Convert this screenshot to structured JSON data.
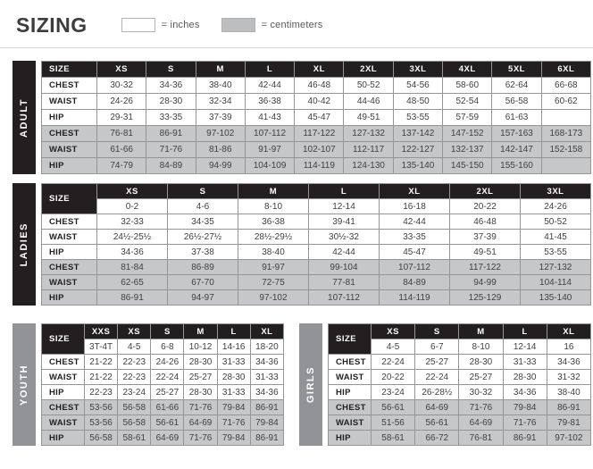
{
  "header": {
    "title": "SIZING",
    "legend_inches": "= inches",
    "legend_centimeters": "= centimeters"
  },
  "colors": {
    "black": "#231f20",
    "gray_bar": "#919396",
    "cm_row_bg": "#c6c7c9",
    "border": "#939598",
    "inches_swatch": "#ffffff",
    "centimeters_swatch": "#bcbec0"
  },
  "tables": [
    {
      "id": "adult",
      "group_label": "ADULT",
      "bar": "black",
      "size_label": "SIZE",
      "sizes": [
        "XS",
        "S",
        "M",
        "L",
        "XL",
        "2XL",
        "3XL",
        "4XL",
        "5XL",
        "6XL"
      ],
      "rows": [
        {
          "label": "CHEST",
          "unit": "in",
          "values": [
            "30-32",
            "34-36",
            "38-40",
            "42-44",
            "46-48",
            "50-52",
            "54-56",
            "58-60",
            "62-64",
            "66-68"
          ]
        },
        {
          "label": "WAIST",
          "unit": "in",
          "values": [
            "24-26",
            "28-30",
            "32-34",
            "36-38",
            "40-42",
            "44-46",
            "48-50",
            "52-54",
            "56-58",
            "60-62"
          ]
        },
        {
          "label": "HIP",
          "unit": "in",
          "values": [
            "29-31",
            "33-35",
            "37-39",
            "41-43",
            "45-47",
            "49-51",
            "53-55",
            "57-59",
            "61-63",
            ""
          ]
        },
        {
          "label": "CHEST",
          "unit": "cm",
          "values": [
            "76-81",
            "86-91",
            "97-102",
            "107-112",
            "117-122",
            "127-132",
            "137-142",
            "147-152",
            "157-163",
            "168-173"
          ]
        },
        {
          "label": "WAIST",
          "unit": "cm",
          "values": [
            "61-66",
            "71-76",
            "81-86",
            "91-97",
            "102-107",
            "112-117",
            "122-127",
            "132-137",
            "142-147",
            "152-158"
          ]
        },
        {
          "label": "HIP",
          "unit": "cm",
          "values": [
            "74-79",
            "84-89",
            "94-99",
            "104-109",
            "114-119",
            "124-130",
            "135-140",
            "145-150",
            "155-160",
            ""
          ]
        }
      ]
    },
    {
      "id": "ladies",
      "group_label": "LADIES",
      "bar": "black",
      "size_label": "SIZE",
      "sizes": [
        "XS",
        "S",
        "M",
        "L",
        "XL",
        "2XL",
        "3XL"
      ],
      "size_numbers": [
        "0-2",
        "4-6",
        "8-10",
        "12-14",
        "16-18",
        "20-22",
        "24-26"
      ],
      "rows": [
        {
          "label": "CHEST",
          "unit": "in",
          "values": [
            "32-33",
            "34-35",
            "36-38",
            "39-41",
            "42-44",
            "46-48",
            "50-52"
          ]
        },
        {
          "label": "WAIST",
          "unit": "in",
          "values": [
            "24½-25½",
            "26½-27½",
            "28½-29½",
            "30½-32",
            "33-35",
            "37-39",
            "41-45"
          ]
        },
        {
          "label": "HIP",
          "unit": "in",
          "values": [
            "34-36",
            "37-38",
            "38-40",
            "42-44",
            "45-47",
            "49-51",
            "53-55"
          ]
        },
        {
          "label": "CHEST",
          "unit": "cm",
          "values": [
            "81-84",
            "86-89",
            "91-97",
            "99-104",
            "107-112",
            "117-122",
            "127-132"
          ]
        },
        {
          "label": "WAIST",
          "unit": "cm",
          "values": [
            "62-65",
            "67-70",
            "72-75",
            "77-81",
            "84-89",
            "94-99",
            "104-114"
          ]
        },
        {
          "label": "HIP",
          "unit": "cm",
          "values": [
            "86-91",
            "94-97",
            "97-102",
            "107-112",
            "114-119",
            "125-129",
            "135-140"
          ]
        }
      ]
    },
    {
      "id": "youth",
      "group_label": "YOUTH",
      "bar": "gray",
      "size_label": "SIZE",
      "sizes": [
        "XXS",
        "XS",
        "S",
        "M",
        "L",
        "XL"
      ],
      "size_numbers": [
        "3T-4T",
        "4-5",
        "6-8",
        "10-12",
        "14-16",
        "18-20"
      ],
      "rows": [
        {
          "label": "CHEST",
          "unit": "in",
          "values": [
            "21-22",
            "22-23",
            "24-26",
            "28-30",
            "31-33",
            "34-36"
          ]
        },
        {
          "label": "WAIST",
          "unit": "in",
          "values": [
            "21-22",
            "22-23",
            "22-24",
            "25-27",
            "28-30",
            "31-33"
          ]
        },
        {
          "label": "HIP",
          "unit": "in",
          "values": [
            "22-23",
            "23-24",
            "25-27",
            "28-30",
            "31-33",
            "34-36"
          ]
        },
        {
          "label": "CHEST",
          "unit": "cm",
          "values": [
            "53-56",
            "56-58",
            "61-66",
            "71-76",
            "79-84",
            "86-91"
          ]
        },
        {
          "label": "WAIST",
          "unit": "cm",
          "values": [
            "53-56",
            "56-58",
            "56-61",
            "64-69",
            "71-76",
            "79-84"
          ]
        },
        {
          "label": "HIP",
          "unit": "cm",
          "values": [
            "56-58",
            "58-61",
            "64-69",
            "71-76",
            "79-84",
            "86-91"
          ]
        }
      ]
    },
    {
      "id": "girls",
      "group_label": "GIRLS",
      "bar": "gray",
      "size_label": "SIZE",
      "sizes": [
        "XS",
        "S",
        "M",
        "L",
        "XL"
      ],
      "size_numbers": [
        "4-5",
        "6-7",
        "8-10",
        "12-14",
        "16"
      ],
      "rows": [
        {
          "label": "CHEST",
          "unit": "in",
          "values": [
            "22-24",
            "25-27",
            "28-30",
            "31-33",
            "34-36"
          ]
        },
        {
          "label": "WAIST",
          "unit": "in",
          "values": [
            "20-22",
            "22-24",
            "25-27",
            "28-30",
            "31-32"
          ]
        },
        {
          "label": "HIP",
          "unit": "in",
          "values": [
            "23-24",
            "26-28½",
            "30-32",
            "34-36",
            "38-40"
          ]
        },
        {
          "label": "CHEST",
          "unit": "cm",
          "values": [
            "56-61",
            "64-69",
            "71-76",
            "79-84",
            "86-91"
          ]
        },
        {
          "label": "WAIST",
          "unit": "cm",
          "values": [
            "51-56",
            "56-61",
            "64-69",
            "71-76",
            "79-81"
          ]
        },
        {
          "label": "HIP",
          "unit": "cm",
          "values": [
            "58-61",
            "66-72",
            "76-81",
            "86-91",
            "97-102"
          ]
        }
      ]
    }
  ]
}
